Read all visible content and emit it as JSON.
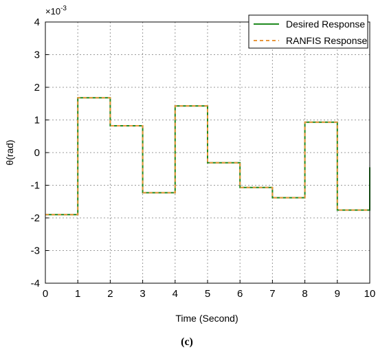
{
  "chart_data": {
    "type": "line",
    "xlabel": "Time (Second)",
    "ylabel": "θ(rad)",
    "y_multiplier_base": "×10",
    "y_multiplier_exp": "-3",
    "xlim": [
      0,
      10
    ],
    "ylim": [
      -4,
      4
    ],
    "x_ticks": [
      "0",
      "1",
      "2",
      "3",
      "4",
      "5",
      "6",
      "7",
      "8",
      "9",
      "10"
    ],
    "y_ticks": [
      "-4",
      "-3",
      "-2",
      "-1",
      "0",
      "1",
      "2",
      "3",
      "4"
    ],
    "grid": true,
    "legend_position": "top-right",
    "caption": "(c)",
    "series": [
      {
        "name": "Desired Response",
        "color": "#1f8a1f",
        "style": "solid",
        "x": [
          0,
          1,
          1,
          2,
          2,
          3,
          3,
          4,
          4,
          5,
          5,
          6,
          6,
          7,
          7,
          8,
          8,
          9,
          9,
          10,
          10
        ],
        "y": [
          -1.9,
          -1.9,
          1.68,
          1.68,
          0.82,
          0.82,
          -1.23,
          -1.23,
          1.43,
          1.43,
          -0.31,
          -0.31,
          -1.07,
          -1.07,
          -1.38,
          -1.38,
          0.93,
          0.93,
          -1.76,
          -1.76,
          -0.45
        ]
      },
      {
        "name": "RANFIS Response",
        "color": "#e8963a",
        "style": "dashed",
        "x": [
          0,
          1,
          1,
          2,
          2,
          3,
          3,
          4,
          4,
          5,
          5,
          6,
          6,
          7,
          7,
          8,
          8,
          9,
          9,
          10
        ],
        "y": [
          -1.9,
          -1.9,
          1.68,
          1.68,
          0.82,
          0.82,
          -1.23,
          -1.23,
          1.43,
          1.43,
          -0.31,
          -0.31,
          -1.07,
          -1.07,
          -1.38,
          -1.38,
          0.93,
          0.93,
          -1.76,
          -1.76
        ]
      }
    ]
  }
}
